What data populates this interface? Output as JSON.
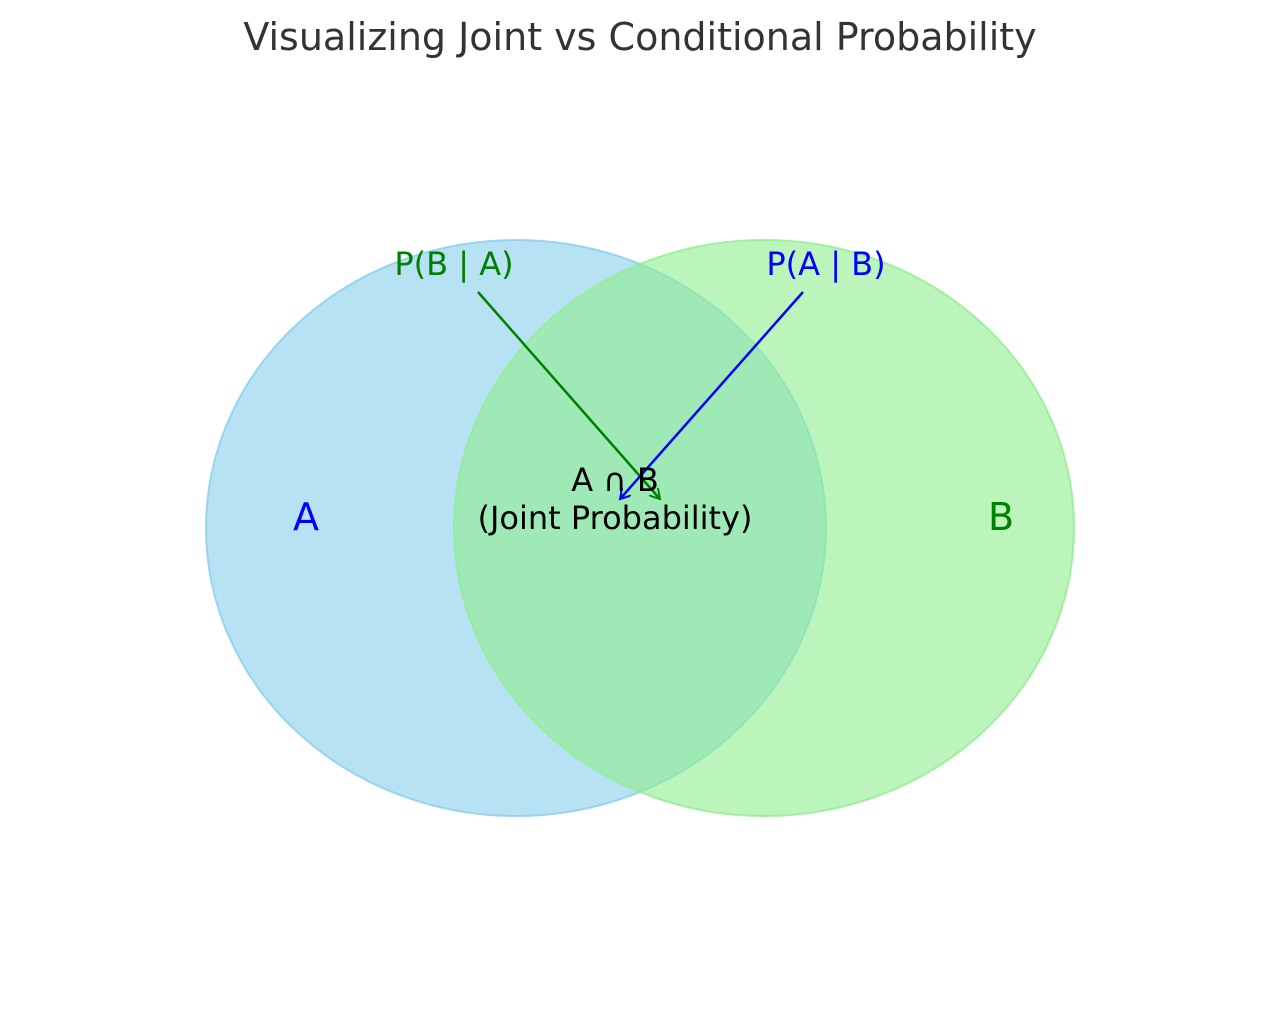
{
  "title": "Visualizing Joint vs Conditional Probability",
  "sets": [
    {
      "label": "A",
      "fill": "#87ceeb",
      "label_color": "#0000ff"
    },
    {
      "label": "B",
      "fill": "#90ee90",
      "label_color": "#008000"
    }
  ],
  "intersection": {
    "line1": "A ∩ B",
    "line2": "(Joint Probability)"
  },
  "annotations": [
    {
      "label": "P(B | A)",
      "color": "#008000"
    },
    {
      "label": "P(A | B)",
      "color": "#0000ff"
    }
  ]
}
